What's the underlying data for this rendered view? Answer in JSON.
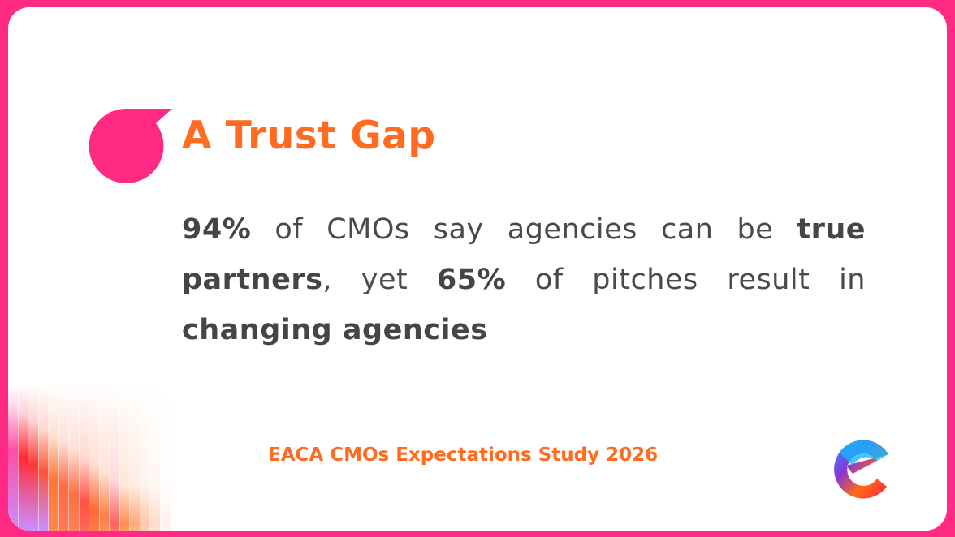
{
  "slide": {
    "title": "A Trust Gap",
    "body": {
      "stat1": "94%",
      "text1": " of CMOs say agencies can be ",
      "emph1": "true partners",
      "text2": ", yet ",
      "stat2": "65%",
      "text3": " of pitches result in ",
      "emph2": "changing agencies"
    },
    "source": "EACA CMOs Expectations Study 2026"
  },
  "colors": {
    "frame": "#ff2a84",
    "accent": "#ff6b21",
    "text": "#4a4a4a"
  }
}
